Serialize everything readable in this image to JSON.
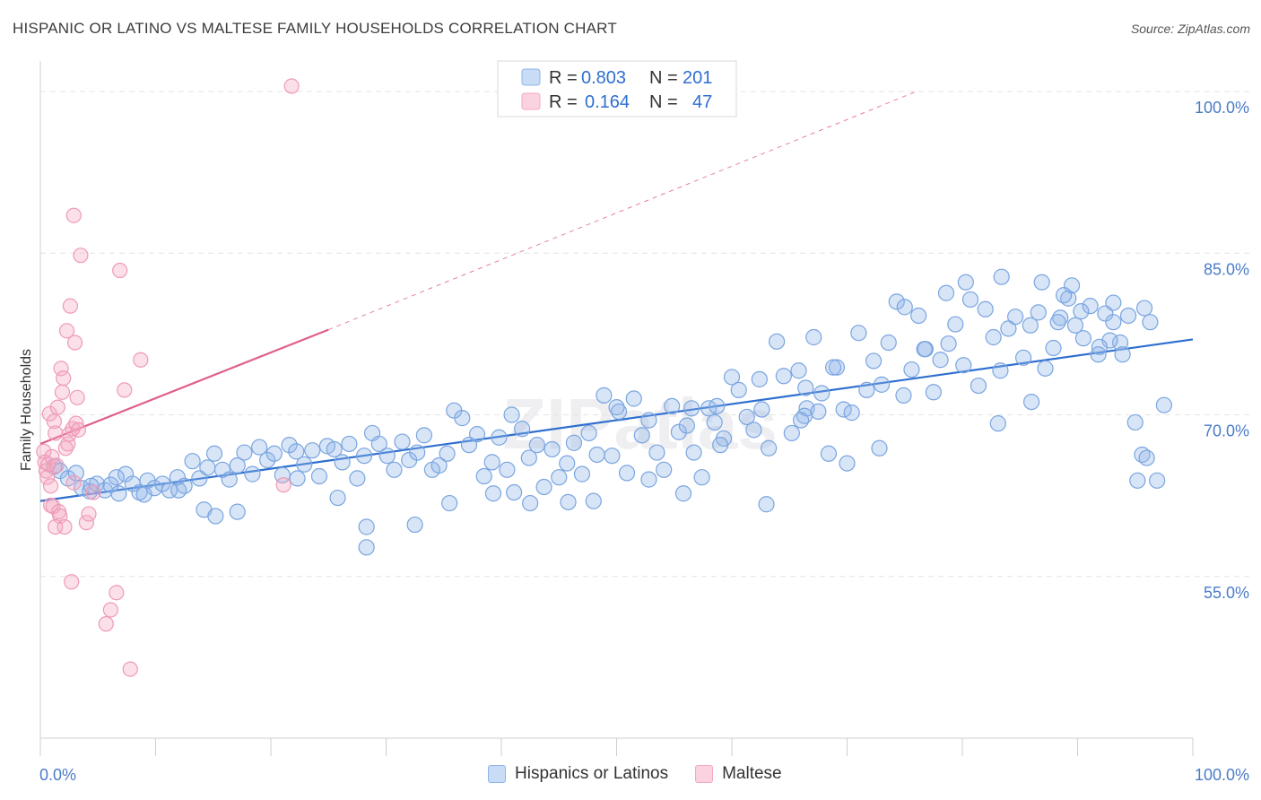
{
  "header": {
    "title": "HISPANIC OR LATINO VS MALTESE FAMILY HOUSEHOLDS CORRELATION CHART",
    "source": "Source: ZipAtlas.com"
  },
  "chart_data": {
    "type": "scatter",
    "title": "HISPANIC OR LATINO VS MALTESE FAMILY HOUSEHOLDS CORRELATION CHART",
    "ylabel": "Family Households",
    "xlim": [
      0,
      100
    ],
    "ylim": [
      40,
      102
    ],
    "x_tick_labels": [
      "0.0%",
      "100.0%"
    ],
    "y_ticks": [
      55,
      70,
      85,
      100
    ],
    "y_tick_labels": [
      "55.0%",
      "70.0%",
      "85.0%",
      "100.0%"
    ],
    "grid": true,
    "watermark": "ZIPatlas",
    "legend": {
      "position": "top-center",
      "entries": [
        {
          "r_label": "R =",
          "r_value": "0.803",
          "n_label": "N =",
          "n_value": "201"
        },
        {
          "r_label": "R =",
          "r_value": "0.164",
          "n_label": "N =",
          "n_value": "47"
        }
      ]
    },
    "series": [
      {
        "name": "Hispanics or Latinos",
        "color": "#8fb4e8",
        "line_color": "#2e6fcf",
        "trend": {
          "x": [
            0,
            100
          ],
          "y": [
            62.0,
            77.0
          ]
        },
        "points": [
          [
            1.2,
            65.2
          ],
          [
            1.7,
            64.8
          ],
          [
            2.4,
            64.1
          ],
          [
            3.1,
            64.6
          ],
          [
            3.6,
            63.2
          ],
          [
            4.3,
            62.9
          ],
          [
            4.9,
            63.6
          ],
          [
            5.6,
            63.0
          ],
          [
            6.1,
            63.5
          ],
          [
            6.8,
            62.7
          ],
          [
            7.4,
            64.5
          ],
          [
            8.0,
            63.6
          ],
          [
            8.6,
            62.8
          ],
          [
            9.3,
            63.9
          ],
          [
            9.9,
            63.2
          ],
          [
            10.6,
            63.6
          ],
          [
            11.2,
            63.0
          ],
          [
            11.9,
            64.2
          ],
          [
            12.5,
            63.4
          ],
          [
            13.2,
            65.7
          ],
          [
            13.8,
            64.1
          ],
          [
            14.5,
            65.1
          ],
          [
            15.1,
            66.4
          ],
          [
            15.8,
            64.9
          ],
          [
            16.4,
            64.0
          ],
          [
            17.1,
            65.3
          ],
          [
            17.7,
            66.5
          ],
          [
            18.4,
            64.5
          ],
          [
            19.0,
            67.0
          ],
          [
            19.7,
            65.8
          ],
          [
            20.3,
            66.4
          ],
          [
            21.0,
            64.4
          ],
          [
            21.6,
            67.2
          ],
          [
            22.3,
            64.1
          ],
          [
            22.9,
            65.4
          ],
          [
            23.6,
            66.7
          ],
          [
            24.2,
            64.3
          ],
          [
            24.9,
            67.1
          ],
          [
            25.5,
            66.8
          ],
          [
            26.2,
            65.6
          ],
          [
            26.8,
            67.3
          ],
          [
            27.5,
            64.1
          ],
          [
            28.1,
            66.2
          ],
          [
            28.8,
            68.3
          ],
          [
            29.4,
            67.3
          ],
          [
            30.1,
            66.2
          ],
          [
            30.7,
            64.9
          ],
          [
            31.4,
            67.5
          ],
          [
            32.0,
            65.8
          ],
          [
            32.7,
            66.5
          ],
          [
            33.3,
            68.1
          ],
          [
            34.0,
            64.9
          ],
          [
            34.6,
            65.3
          ],
          [
            35.3,
            66.4
          ],
          [
            35.9,
            70.4
          ],
          [
            36.6,
            69.7
          ],
          [
            37.2,
            67.2
          ],
          [
            37.9,
            68.2
          ],
          [
            38.5,
            64.3
          ],
          [
            39.2,
            65.6
          ],
          [
            39.8,
            67.9
          ],
          [
            40.5,
            64.9
          ],
          [
            41.1,
            62.8
          ],
          [
            41.8,
            68.7
          ],
          [
            42.4,
            66.0
          ],
          [
            43.1,
            67.2
          ],
          [
            43.7,
            63.3
          ],
          [
            44.4,
            66.8
          ],
          [
            45.0,
            64.2
          ],
          [
            45.7,
            65.5
          ],
          [
            46.3,
            67.4
          ],
          [
            47.0,
            64.5
          ],
          [
            47.6,
            68.3
          ],
          [
            48.3,
            66.3
          ],
          [
            48.9,
            71.8
          ],
          [
            49.6,
            66.2
          ],
          [
            50.2,
            70.3
          ],
          [
            50.9,
            64.6
          ],
          [
            51.5,
            71.5
          ],
          [
            52.2,
            68.1
          ],
          [
            52.8,
            69.5
          ],
          [
            53.5,
            66.5
          ],
          [
            54.1,
            64.9
          ],
          [
            54.8,
            70.8
          ],
          [
            55.4,
            68.4
          ],
          [
            56.1,
            69.0
          ],
          [
            56.7,
            66.5
          ],
          [
            57.4,
            64.2
          ],
          [
            58.0,
            70.6
          ],
          [
            58.7,
            70.8
          ],
          [
            59.3,
            67.8
          ],
          [
            60.0,
            73.5
          ],
          [
            60.6,
            72.3
          ],
          [
            61.3,
            69.8
          ],
          [
            61.9,
            68.6
          ],
          [
            62.6,
            70.5
          ],
          [
            63.2,
            66.9
          ],
          [
            63.9,
            76.8
          ],
          [
            64.5,
            73.6
          ],
          [
            65.2,
            68.3
          ],
          [
            65.8,
            74.1
          ],
          [
            66.5,
            70.6
          ],
          [
            67.1,
            77.2
          ],
          [
            67.8,
            72.0
          ],
          [
            68.4,
            66.4
          ],
          [
            69.1,
            74.4
          ],
          [
            69.7,
            70.5
          ],
          [
            70.4,
            70.2
          ],
          [
            71.0,
            77.6
          ],
          [
            71.7,
            72.3
          ],
          [
            72.3,
            75.0
          ],
          [
            73.0,
            72.8
          ],
          [
            73.6,
            76.7
          ],
          [
            74.3,
            80.5
          ],
          [
            74.9,
            71.8
          ],
          [
            75.6,
            74.2
          ],
          [
            76.2,
            79.2
          ],
          [
            76.8,
            76.1
          ],
          [
            77.5,
            72.1
          ],
          [
            78.1,
            75.1
          ],
          [
            78.8,
            76.6
          ],
          [
            79.4,
            78.4
          ],
          [
            80.1,
            74.6
          ],
          [
            80.7,
            80.7
          ],
          [
            81.4,
            72.7
          ],
          [
            82.0,
            79.8
          ],
          [
            82.7,
            77.2
          ],
          [
            83.3,
            74.1
          ],
          [
            84.0,
            78.0
          ],
          [
            84.6,
            79.1
          ],
          [
            85.3,
            75.3
          ],
          [
            85.9,
            78.3
          ],
          [
            86.6,
            79.5
          ],
          [
            87.2,
            74.3
          ],
          [
            87.9,
            76.2
          ],
          [
            88.5,
            79.0
          ],
          [
            89.2,
            80.8
          ],
          [
            89.8,
            78.3
          ],
          [
            90.5,
            77.1
          ],
          [
            91.1,
            80.1
          ],
          [
            91.8,
            75.6
          ],
          [
            92.4,
            79.4
          ],
          [
            93.1,
            78.6
          ],
          [
            93.7,
            76.7
          ],
          [
            94.4,
            79.2
          ],
          [
            95.0,
            69.3
          ],
          [
            95.6,
            66.3
          ],
          [
            96.3,
            78.6
          ],
          [
            96.9,
            63.9
          ],
          [
            97.5,
            70.9
          ],
          [
            4.4,
            63.4
          ],
          [
            6.6,
            64.2
          ],
          [
            9.0,
            62.6
          ],
          [
            12.0,
            63.0
          ],
          [
            14.2,
            61.2
          ],
          [
            15.2,
            60.6
          ],
          [
            17.1,
            61.0
          ],
          [
            22.2,
            66.6
          ],
          [
            25.8,
            62.3
          ],
          [
            28.3,
            59.6
          ],
          [
            28.3,
            57.7
          ],
          [
            32.5,
            59.8
          ],
          [
            39.3,
            62.7
          ],
          [
            42.5,
            61.8
          ],
          [
            48.0,
            62.0
          ],
          [
            55.8,
            62.7
          ],
          [
            56.5,
            70.6
          ],
          [
            59.0,
            67.2
          ],
          [
            66.4,
            72.5
          ],
          [
            70.0,
            65.5
          ],
          [
            72.8,
            66.9
          ],
          [
            75.0,
            80.0
          ],
          [
            76.7,
            76.1
          ],
          [
            83.1,
            69.2
          ],
          [
            88.3,
            78.6
          ],
          [
            92.8,
            76.9
          ],
          [
            95.2,
            63.9
          ],
          [
            96.0,
            66.0
          ],
          [
            40.9,
            70.0
          ],
          [
            58.5,
            69.3
          ],
          [
            45.8,
            61.9
          ],
          [
            63.0,
            61.7
          ],
          [
            52.8,
            64.0
          ],
          [
            35.5,
            61.8
          ],
          [
            50.0,
            70.7
          ],
          [
            66.3,
            69.9
          ],
          [
            68.8,
            74.4
          ],
          [
            62.4,
            73.3
          ],
          [
            86.0,
            71.2
          ],
          [
            89.5,
            82.0
          ],
          [
            91.9,
            76.3
          ],
          [
            93.9,
            75.6
          ],
          [
            95.8,
            79.9
          ],
          [
            78.6,
            81.3
          ],
          [
            80.3,
            82.3
          ],
          [
            83.4,
            82.8
          ],
          [
            86.9,
            82.3
          ],
          [
            88.8,
            81.1
          ],
          [
            90.3,
            79.6
          ],
          [
            93.1,
            80.4
          ],
          [
            66.0,
            69.5
          ],
          [
            67.5,
            70.3
          ]
        ]
      },
      {
        "name": "Maltese",
        "color": "#f4a7c0",
        "line_color": "#e0608a",
        "trend": {
          "x": [
            0,
            25
          ],
          "y": [
            67.3,
            77.9
          ],
          "dashed_to": {
            "x": 76,
            "y": 100
          }
        },
        "points": [
          [
            0.3,
            66.6
          ],
          [
            0.4,
            65.6
          ],
          [
            0.5,
            64.8
          ],
          [
            0.6,
            64.2
          ],
          [
            0.7,
            65.4
          ],
          [
            0.8,
            70.1
          ],
          [
            0.9,
            63.4
          ],
          [
            1.0,
            66.1
          ],
          [
            1.1,
            61.5
          ],
          [
            1.2,
            69.4
          ],
          [
            1.3,
            68.3
          ],
          [
            1.4,
            65.3
          ],
          [
            1.5,
            70.7
          ],
          [
            1.6,
            61.0
          ],
          [
            1.7,
            60.6
          ],
          [
            1.8,
            74.3
          ],
          [
            1.9,
            72.1
          ],
          [
            2.0,
            73.4
          ],
          [
            2.1,
            59.6
          ],
          [
            2.2,
            66.9
          ],
          [
            2.3,
            77.8
          ],
          [
            2.4,
            67.3
          ],
          [
            2.5,
            68.2
          ],
          [
            2.6,
            80.1
          ],
          [
            2.7,
            54.5
          ],
          [
            2.8,
            68.7
          ],
          [
            2.9,
            63.7
          ],
          [
            3.0,
            76.7
          ],
          [
            3.1,
            69.2
          ],
          [
            3.2,
            71.6
          ],
          [
            3.3,
            68.6
          ],
          [
            4.0,
            60.0
          ],
          [
            4.6,
            62.8
          ],
          [
            5.7,
            50.6
          ],
          [
            6.1,
            51.9
          ],
          [
            6.6,
            53.5
          ],
          [
            6.9,
            83.4
          ],
          [
            7.3,
            72.3
          ],
          [
            7.8,
            46.4
          ],
          [
            8.7,
            75.1
          ],
          [
            21.8,
            100.5
          ],
          [
            2.9,
            88.5
          ],
          [
            3.5,
            84.8
          ],
          [
            0.9,
            61.6
          ],
          [
            1.3,
            59.6
          ],
          [
            4.2,
            60.8
          ],
          [
            21.1,
            63.5
          ]
        ]
      }
    ]
  },
  "bottom_legend": [
    {
      "label": "Hispanics or Latinos",
      "color": "#c9dcf6",
      "border": "#8fb4e8"
    },
    {
      "label": "Maltese",
      "color": "#fbd3e0",
      "border": "#f4a7c0"
    }
  ]
}
